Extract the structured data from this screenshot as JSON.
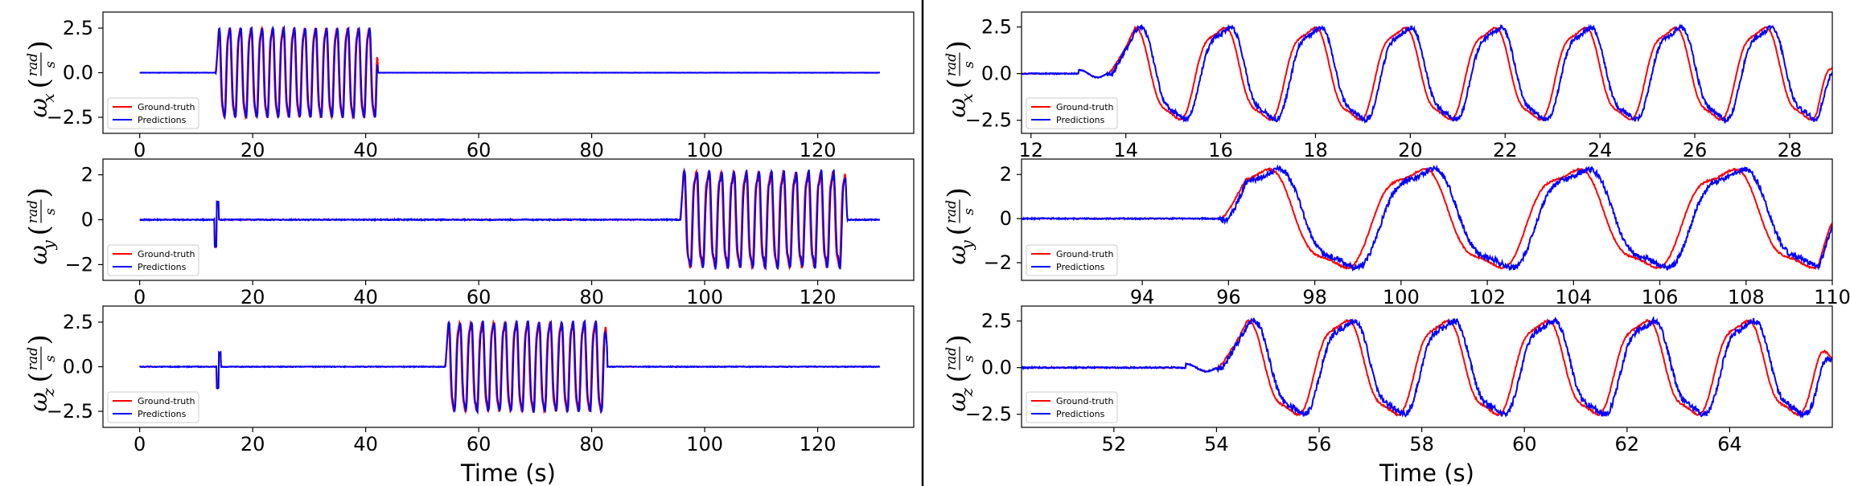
{
  "colors": {
    "ground_truth": "#ff0000",
    "predictions": "#0000ff",
    "frame": "#000000"
  },
  "chart_data": [
    {
      "panel": "left-top",
      "type": "line",
      "ylabel": {
        "symbol": "ω",
        "sub": "x",
        "unit_num": "rad",
        "unit_den": "s"
      },
      "xlim": [
        -6.5,
        137
      ],
      "ylim": [
        -3.4,
        3.4
      ],
      "xticks": [
        0,
        20,
        40,
        60,
        80,
        100,
        120
      ],
      "yticks": [
        -2.5,
        0.0,
        2.5
      ],
      "ytick_labels": [
        "−2.5",
        "0.0",
        "2.5"
      ],
      "xtick_labels": [
        "0",
        "20",
        "40",
        "60",
        "80",
        "100",
        "120"
      ],
      "xlabel": "",
      "legend": [
        "Ground-truth",
        "Predictions"
      ],
      "legend_loc": "lower left",
      "gen": {
        "kind": "osc",
        "t0": 0,
        "t1": 131,
        "a0": 13.4,
        "a1": 42.2,
        "amp": 2.6,
        "period": 1.9,
        "noise": 0.02
      },
      "series": [
        {
          "name": "Ground-truth",
          "color": "#ff0000"
        },
        {
          "name": "Predictions",
          "color": "#0000ff"
        }
      ]
    },
    {
      "panel": "left-mid",
      "type": "line",
      "ylabel": {
        "symbol": "ω",
        "sub": "y",
        "unit_num": "rad",
        "unit_den": "s"
      },
      "xlim": [
        -6.5,
        137
      ],
      "ylim": [
        -2.7,
        2.7
      ],
      "xticks": [
        0,
        20,
        40,
        60,
        80,
        100,
        120
      ],
      "yticks": [
        -2,
        0,
        2
      ],
      "ytick_labels": [
        "−2",
        "0",
        "2"
      ],
      "xtick_labels": [
        "0",
        "20",
        "40",
        "60",
        "80",
        "100",
        "120"
      ],
      "xlabel": "",
      "legend": [
        "Ground-truth",
        "Predictions"
      ],
      "legend_loc": "lower left",
      "gen": {
        "kind": "osc",
        "t0": 0,
        "t1": 131,
        "a0": 95.6,
        "a1": 125.2,
        "amp": 2.2,
        "period": 2.2,
        "noise": 0.05,
        "spike": 13.6
      },
      "series": [
        {
          "name": "Ground-truth",
          "color": "#ff0000"
        },
        {
          "name": "Predictions",
          "color": "#0000ff"
        }
      ]
    },
    {
      "panel": "left-bot",
      "type": "line",
      "ylabel": {
        "symbol": "ω",
        "sub": "z",
        "unit_num": "rad",
        "unit_den": "s"
      },
      "xlim": [
        -6.5,
        137
      ],
      "ylim": [
        -3.4,
        3.4
      ],
      "xticks": [
        0,
        20,
        40,
        60,
        80,
        100,
        120
      ],
      "yticks": [
        -2.5,
        0.0,
        2.5
      ],
      "ytick_labels": [
        "−2.5",
        "0.0",
        "2.5"
      ],
      "xtick_labels": [
        "0",
        "20",
        "40",
        "60",
        "80",
        "100",
        "120"
      ],
      "xlabel": "Time (s)",
      "legend": [
        "Ground-truth",
        "Predictions"
      ],
      "legend_loc": "lower left",
      "gen": {
        "kind": "osc",
        "t0": 0,
        "t1": 131,
        "a0": 54.0,
        "a1": 82.8,
        "amp": 2.6,
        "period": 2.0,
        "noise": 0.05,
        "spike": 14.0
      },
      "series": [
        {
          "name": "Ground-truth",
          "color": "#ff0000"
        },
        {
          "name": "Predictions",
          "color": "#0000ff"
        }
      ]
    },
    {
      "panel": "right-top",
      "type": "line",
      "ylabel": {
        "symbol": "ω",
        "sub": "x",
        "unit_num": "rad",
        "unit_den": "s"
      },
      "xlim": [
        11.8,
        28.9
      ],
      "ylim": [
        -3.2,
        3.3
      ],
      "xticks": [
        12,
        14,
        16,
        18,
        20,
        22,
        24,
        26,
        28
      ],
      "yticks": [
        -2.5,
        0.0,
        2.5
      ],
      "ytick_labels": [
        "−2.5",
        "0.0",
        "2.5"
      ],
      "xtick_labels": [
        "12",
        "14",
        "16",
        "18",
        "20",
        "22",
        "24",
        "26",
        "28"
      ],
      "xlabel": "",
      "legend": [
        "Ground-truth",
        "Predictions"
      ],
      "legend_loc": "lower left",
      "gen": {
        "kind": "osc",
        "t0": 11.8,
        "t1": 28.9,
        "a0": 13.6,
        "a1": 28.9,
        "amp": 2.55,
        "period": 1.9,
        "noise": 0.06,
        "pre": 0.2
      },
      "series": [
        {
          "name": "Ground-truth",
          "color": "#ff0000"
        },
        {
          "name": "Predictions",
          "color": "#0000ff"
        }
      ]
    },
    {
      "panel": "right-mid",
      "type": "line",
      "ylabel": {
        "symbol": "ω",
        "sub": "y",
        "unit_num": "rad",
        "unit_den": "s"
      },
      "xlim": [
        91.2,
        110.0
      ],
      "ylim": [
        -2.8,
        2.7
      ],
      "xticks": [
        94,
        96,
        98,
        100,
        102,
        104,
        106,
        108,
        110
      ],
      "yticks": [
        -2,
        0,
        2
      ],
      "ytick_labels": [
        "−2",
        "0",
        "2"
      ],
      "xtick_labels": [
        "94",
        "96",
        "98",
        "100",
        "102",
        "104",
        "106",
        "108",
        "110"
      ],
      "xlabel": "",
      "legend": [
        "Ground-truth",
        "Predictions"
      ],
      "legend_loc": "lower left",
      "gen": {
        "kind": "osc",
        "t0": 91.2,
        "t1": 110.0,
        "a0": 95.8,
        "a1": 110.0,
        "amp": 2.3,
        "period": 3.6,
        "noise": 0.06
      },
      "series": [
        {
          "name": "Ground-truth",
          "color": "#ff0000"
        },
        {
          "name": "Predictions",
          "color": "#0000ff"
        }
      ]
    },
    {
      "panel": "right-bot",
      "type": "line",
      "ylabel": {
        "symbol": "ω",
        "sub": "z",
        "unit_num": "rad",
        "unit_den": "s"
      },
      "xlim": [
        50.2,
        66.0
      ],
      "ylim": [
        -3.2,
        3.3
      ],
      "xticks": [
        52,
        54,
        56,
        58,
        60,
        62,
        64
      ],
      "yticks": [
        -2.5,
        0.0,
        2.5
      ],
      "ytick_labels": [
        "−2.5",
        "0.0",
        "2.5"
      ],
      "xtick_labels": [
        "52",
        "54",
        "56",
        "58",
        "60",
        "62",
        "64"
      ],
      "xlabel": "Time (s)",
      "legend": [
        "Ground-truth",
        "Predictions"
      ],
      "legend_loc": "lower left",
      "gen": {
        "kind": "osc",
        "t0": 50.2,
        "t1": 66.0,
        "a0": 54.0,
        "a1": 66.0,
        "amp": 2.6,
        "period": 1.95,
        "noise": 0.08,
        "pre": 0.2
      },
      "series": [
        {
          "name": "Ground-truth",
          "color": "#ff0000"
        },
        {
          "name": "Predictions",
          "color": "#0000ff"
        }
      ]
    }
  ]
}
